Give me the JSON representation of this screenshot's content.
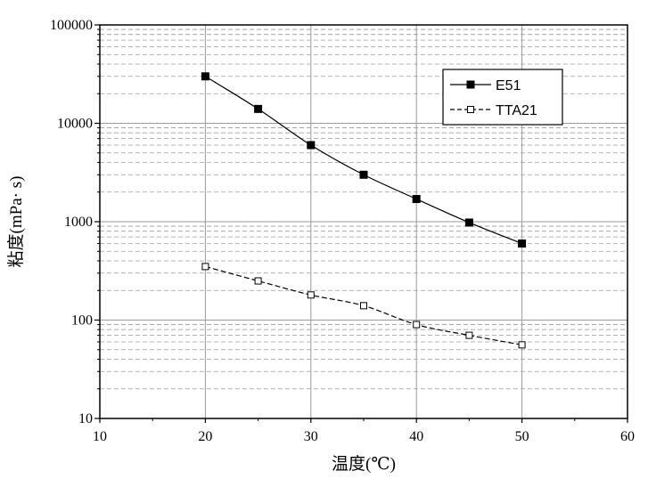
{
  "chart_data": {
    "type": "line",
    "title": "",
    "xlabel": "温度(℃)",
    "ylabel": "粘度(mPa· s)",
    "xlim": [
      10,
      60
    ],
    "ylim": [
      10,
      100000
    ],
    "yscale": "log",
    "x_ticks": [
      "10",
      "20",
      "30",
      "40",
      "50",
      "60"
    ],
    "y_ticks": [
      "10",
      "100",
      "1000",
      "10000",
      "100000"
    ],
    "grid": true,
    "legend_position": "top-right",
    "series": [
      {
        "name": "E51",
        "marker": "filled-square",
        "line_style": "solid",
        "x": [
          20,
          25,
          30,
          35,
          40,
          45,
          50
        ],
        "y": [
          30000,
          14000,
          6000,
          3000,
          1700,
          980,
          600
        ]
      },
      {
        "name": "TTA21",
        "marker": "open-square",
        "line_style": "dashed",
        "x": [
          20,
          25,
          30,
          35,
          40,
          45,
          50
        ],
        "y": [
          350,
          250,
          180,
          140,
          90,
          70,
          56
        ]
      }
    ]
  }
}
